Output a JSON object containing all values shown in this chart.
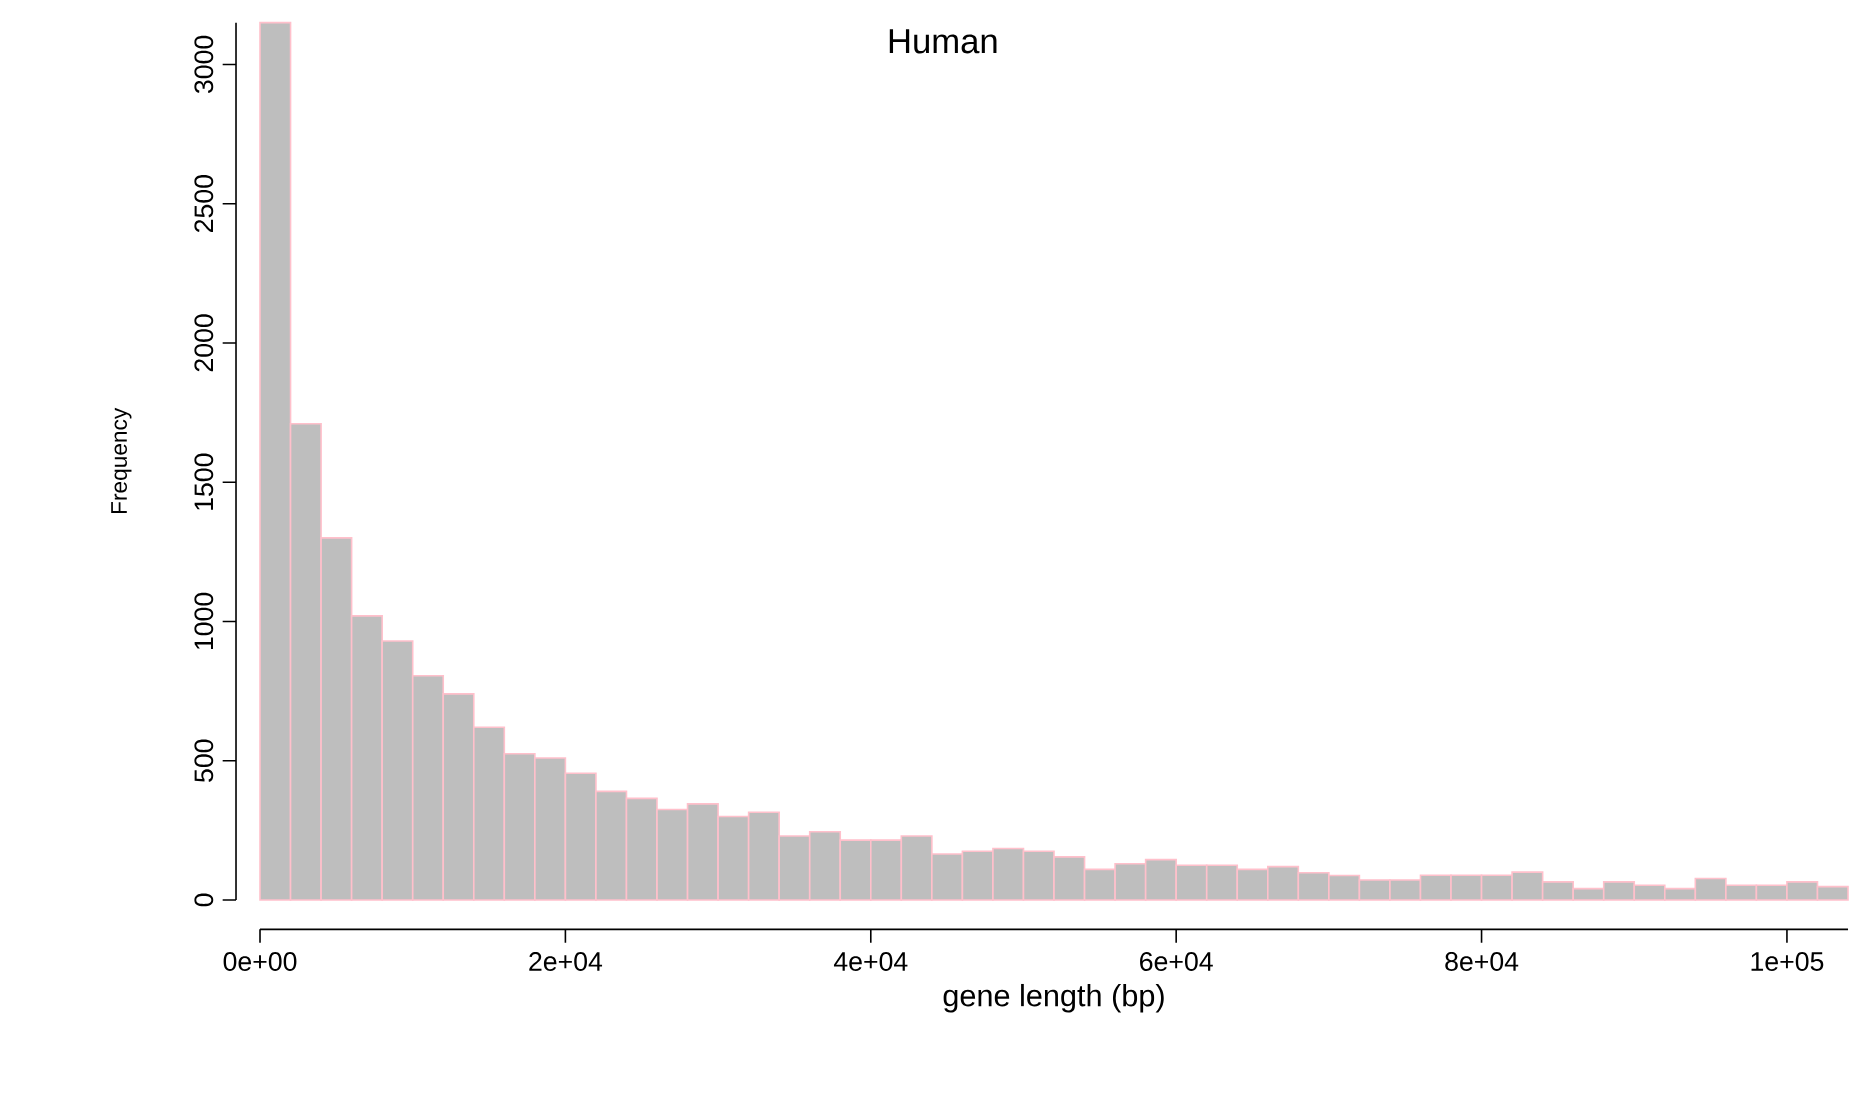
{
  "chart_data": {
    "type": "histogram",
    "title": "Human",
    "xlabel": "gene length (bp)",
    "ylabel": "Frequency",
    "bins": [
      0,
      2000,
      4000,
      6000,
      8000,
      10000,
      12000,
      14000,
      16000,
      18000,
      20000,
      22000,
      24000,
      26000,
      28000,
      30000,
      32000,
      34000,
      36000,
      38000,
      40000,
      42000,
      44000,
      46000,
      48000,
      50000,
      52000,
      54000,
      56000,
      58000,
      60000,
      62000,
      64000,
      66000,
      68000,
      70000,
      72000,
      74000,
      76000,
      78000,
      80000,
      82000,
      84000,
      86000,
      88000,
      90000,
      92000,
      94000,
      96000,
      98000,
      100000,
      102000,
      104000
    ],
    "values": [
      3150,
      1710,
      1300,
      1020,
      930,
      805,
      740,
      620,
      525,
      510,
      455,
      390,
      365,
      325,
      345,
      300,
      315,
      230,
      245,
      215,
      215,
      230,
      165,
      175,
      185,
      175,
      155,
      110,
      130,
      145,
      125,
      125,
      110,
      120,
      98,
      88,
      72,
      72,
      89,
      89,
      89,
      100,
      65,
      41,
      65,
      53,
      41,
      77,
      53,
      53,
      65,
      48
    ],
    "color": "#bebebe",
    "xlim": [
      0,
      104000
    ],
    "ylim": [
      0,
      3150
    ],
    "xticks": [
      {
        "value": 0,
        "label": "0e+00"
      },
      {
        "value": 20000,
        "label": "2e+04"
      },
      {
        "value": 40000,
        "label": "4e+04"
      },
      {
        "value": 60000,
        "label": "6e+04"
      },
      {
        "value": 80000,
        "label": "8e+04"
      },
      {
        "value": 100000,
        "label": "1e+05"
      }
    ],
    "yticks": [
      0,
      500,
      1000,
      1500,
      2000,
      2500,
      3000
    ]
  }
}
